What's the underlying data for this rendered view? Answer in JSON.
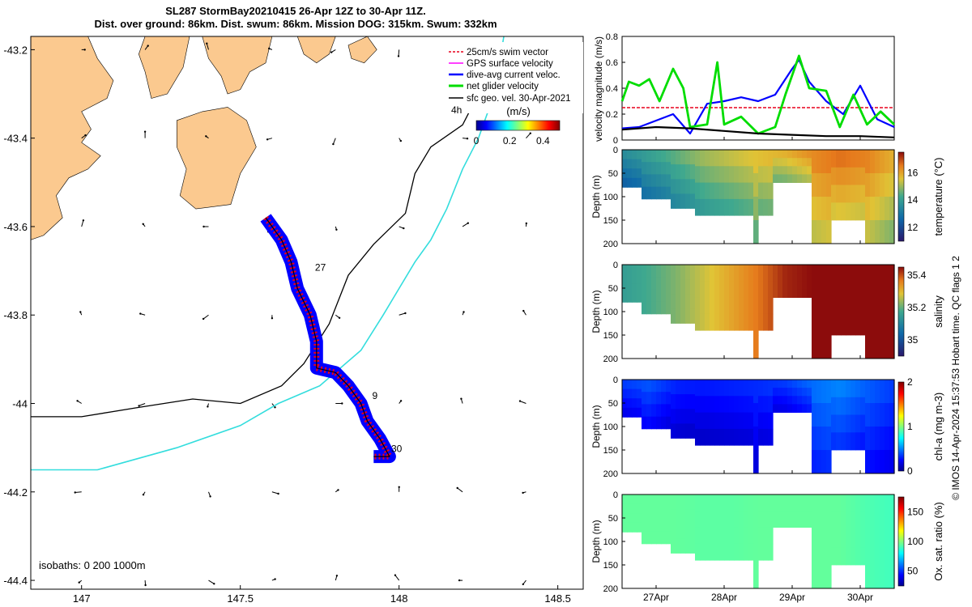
{
  "header": {
    "title_line1": "SL287 StormBay20210415 26-Apr 12Z to 30-Apr 11Z.",
    "title_line2": "Dist. over ground: 86km. Dist. swum: 86km. Mission DOG: 315km. Swum: 332km"
  },
  "colors": {
    "land": "#fbc98f",
    "swim_vector": "#e8001c",
    "gps_surface": "#ff00ff",
    "dive_avg": "#0000ff",
    "net_glider": "#00dd00",
    "sfc_geo": "#000000",
    "isobath_200": "#000000",
    "isobath_1000": "#33dddd"
  },
  "chart_data": [
    {
      "id": "track_map",
      "type": "scatter",
      "xlabel": "",
      "ylabel": "",
      "xlim": [
        146.84,
        148.58
      ],
      "ylim": [
        -44.42,
        -43.17
      ],
      "xticks": [
        147,
        147.5,
        148,
        148.5
      ],
      "xtick_labels": [
        "147",
        "147.5",
        "148",
        "148.5"
      ],
      "yticks": [
        -43.2,
        -43.4,
        -43.6,
        -43.8,
        -44,
        -44.2,
        -44.4
      ],
      "ytick_labels": [
        "-43.2",
        "-43.4",
        "-43.6",
        "-43.8",
        "-44",
        "-44.2",
        "-44.4"
      ],
      "legend": {
        "placement": "top-right",
        "entries": [
          "25cm/s swim vector",
          "GPS surface velocity",
          "dive-avg current veloc.",
          "net glider velocity",
          "sfc geo. vel. 30-Apr-2021"
        ]
      },
      "legend_extra": "4h",
      "colorbar": {
        "label": "(m/s)",
        "ticks": [
          "0",
          "0.2",
          "0.4"
        ],
        "range": [
          0,
          0.5
        ]
      },
      "isobaths_label": "isobaths: 0   200  1000m",
      "day_labels": [
        {
          "text": "27",
          "lon": 147.72,
          "lat": -43.7
        },
        {
          "text": "9",
          "lon": 147.9,
          "lat": -43.99
        },
        {
          "text": "30",
          "lon": 147.96,
          "lat": -44.11
        }
      ],
      "glider_track": [
        [
          147.58,
          -43.58
        ],
        [
          147.63,
          -43.63
        ],
        [
          147.66,
          -43.68
        ],
        [
          147.68,
          -43.74
        ],
        [
          147.72,
          -43.8
        ],
        [
          147.74,
          -43.86
        ],
        [
          147.74,
          -43.92
        ],
        [
          147.8,
          -43.93
        ],
        [
          147.84,
          -43.96
        ],
        [
          147.88,
          -44.0
        ],
        [
          147.9,
          -44.04
        ],
        [
          147.94,
          -44.08
        ],
        [
          147.97,
          -44.12
        ],
        [
          147.92,
          -44.12
        ]
      ],
      "isobath_200": [
        [
          146.84,
          -44.03
        ],
        [
          147.0,
          -44.03
        ],
        [
          147.17,
          -44.01
        ],
        [
          147.35,
          -43.99
        ],
        [
          147.5,
          -44.0
        ],
        [
          147.63,
          -43.96
        ],
        [
          147.7,
          -43.91
        ],
        [
          147.78,
          -43.82
        ],
        [
          147.84,
          -43.71
        ],
        [
          147.92,
          -43.64
        ],
        [
          148.02,
          -43.57
        ],
        [
          148.05,
          -43.48
        ],
        [
          148.1,
          -43.42
        ],
        [
          148.2,
          -43.37
        ],
        [
          148.25,
          -43.3
        ],
        [
          148.3,
          -43.2
        ]
      ],
      "isobath_1000": [
        [
          146.84,
          -44.15
        ],
        [
          147.05,
          -44.15
        ],
        [
          147.3,
          -44.1
        ],
        [
          147.5,
          -44.05
        ],
        [
          147.62,
          -44.0
        ],
        [
          147.75,
          -43.96
        ],
        [
          147.88,
          -43.88
        ],
        [
          147.95,
          -43.8
        ],
        [
          148.0,
          -43.74
        ],
        [
          148.05,
          -43.68
        ],
        [
          148.1,
          -43.63
        ],
        [
          148.15,
          -43.56
        ],
        [
          148.2,
          -43.47
        ],
        [
          148.25,
          -43.4
        ],
        [
          148.3,
          -43.3
        ],
        [
          148.33,
          -43.17
        ]
      ],
      "land_polygons": [
        [
          [
            146.84,
            -43.17
          ],
          [
            147.02,
            -43.17
          ],
          [
            147.05,
            -43.22
          ],
          [
            147.1,
            -43.27
          ],
          [
            147.08,
            -43.31
          ],
          [
            147.0,
            -43.34
          ],
          [
            147.03,
            -43.38
          ],
          [
            147.0,
            -43.41
          ],
          [
            147.06,
            -43.44
          ],
          [
            147.02,
            -43.47
          ],
          [
            146.96,
            -43.49
          ],
          [
            146.92,
            -43.53
          ],
          [
            146.94,
            -43.58
          ],
          [
            146.88,
            -43.62
          ],
          [
            146.84,
            -43.63
          ]
        ],
        [
          [
            147.2,
            -43.17
          ],
          [
            147.34,
            -43.17
          ],
          [
            147.32,
            -43.24
          ],
          [
            147.27,
            -43.3
          ],
          [
            147.22,
            -43.31
          ],
          [
            147.2,
            -43.25
          ],
          [
            147.18,
            -43.21
          ]
        ],
        [
          [
            147.3,
            -43.36
          ],
          [
            147.38,
            -43.34
          ],
          [
            147.46,
            -43.33
          ],
          [
            147.52,
            -43.36
          ],
          [
            147.55,
            -43.42
          ],
          [
            147.5,
            -43.48
          ],
          [
            147.47,
            -43.55
          ],
          [
            147.36,
            -43.56
          ],
          [
            147.31,
            -43.53
          ],
          [
            147.33,
            -43.47
          ],
          [
            147.3,
            -43.42
          ]
        ],
        [
          [
            147.38,
            -43.17
          ],
          [
            147.6,
            -43.17
          ],
          [
            147.58,
            -43.23
          ],
          [
            147.53,
            -43.25
          ],
          [
            147.5,
            -43.29
          ],
          [
            147.46,
            -43.3
          ],
          [
            147.44,
            -43.26
          ],
          [
            147.4,
            -43.22
          ]
        ],
        [
          [
            147.68,
            -43.17
          ],
          [
            147.8,
            -43.17
          ],
          [
            147.78,
            -43.21
          ],
          [
            147.74,
            -43.23
          ],
          [
            147.7,
            -43.21
          ]
        ],
        [
          [
            147.84,
            -43.19
          ],
          [
            147.9,
            -43.17
          ],
          [
            147.93,
            -43.2
          ],
          [
            147.89,
            -43.23
          ],
          [
            147.85,
            -43.22
          ]
        ]
      ]
    },
    {
      "id": "velocity_timeseries",
      "type": "line",
      "xlabel": "",
      "ylabel": "velocity magnitude (m/s)",
      "xlim": [
        0,
        4.0
      ],
      "ylim": [
        0,
        0.8
      ],
      "yticks": [
        0,
        0.2,
        0.4,
        0.6,
        0.8
      ],
      "xtick_labels": [
        "27Apr",
        "28Apr",
        "29Apr",
        "30Apr"
      ],
      "x_days": [
        0.5,
        1.5,
        2.5,
        3.5
      ],
      "series": [
        {
          "name": "25cm/s swim vector",
          "x": [
            0,
            4.0
          ],
          "values": [
            0.25,
            0.25
          ]
        },
        {
          "name": "dive-avg current veloc.",
          "x": [
            0,
            0.25,
            0.5,
            0.75,
            1.0,
            1.25,
            1.5,
            1.75,
            2.0,
            2.25,
            2.5,
            2.6,
            2.75,
            3.0,
            3.25,
            3.5,
            3.75,
            4.0
          ],
          "values": [
            0.09,
            0.1,
            0.15,
            0.2,
            0.05,
            0.28,
            0.3,
            0.33,
            0.3,
            0.35,
            0.55,
            0.62,
            0.45,
            0.3,
            0.2,
            0.42,
            0.16,
            0.1
          ]
        },
        {
          "name": "net glider velocity",
          "x": [
            0,
            0.1,
            0.25,
            0.4,
            0.55,
            0.75,
            0.9,
            1.0,
            1.25,
            1.4,
            1.5,
            1.75,
            2.0,
            2.25,
            2.4,
            2.6,
            2.75,
            3.0,
            3.2,
            3.4,
            3.6,
            3.8,
            4.0
          ],
          "values": [
            0.3,
            0.45,
            0.42,
            0.47,
            0.3,
            0.55,
            0.4,
            0.1,
            0.12,
            0.6,
            0.12,
            0.18,
            0.05,
            0.1,
            0.35,
            0.65,
            0.4,
            0.38,
            0.1,
            0.35,
            0.12,
            0.22,
            0.12
          ]
        },
        {
          "name": "sfc geo. vel. 30-Apr-2021",
          "x": [
            0,
            0.5,
            1.0,
            1.5,
            2.0,
            2.5,
            3.0,
            3.5,
            4.0
          ],
          "values": [
            0.08,
            0.1,
            0.09,
            0.07,
            0.05,
            0.04,
            0.03,
            0.03,
            0.02
          ]
        }
      ]
    },
    {
      "id": "temperature_section",
      "type": "heatmap",
      "ylabel": "Depth (m)",
      "colorbar_label": "temperature (°C)",
      "colorbar_ticks": [
        "12",
        "14",
        "16"
      ],
      "colorbar_range": [
        11,
        17.5
      ],
      "ylim": [
        200,
        0
      ],
      "yticks": [
        "0",
        "50",
        "100",
        "150",
        "200"
      ],
      "days": [
        0,
        0.4,
        0.8,
        1.2,
        1.6,
        2.0,
        2.4,
        2.8,
        3.2,
        3.6,
        4.0
      ],
      "values": [
        13.5,
        14.0,
        14.5,
        15.0,
        15.3,
        15.6,
        15.8,
        16.3,
        16.6,
        16.4,
        15.8
      ]
    },
    {
      "id": "salinity_section",
      "type": "heatmap",
      "ylabel": "Depth (m)",
      "colorbar_label": "salinity",
      "colorbar_ticks": [
        "35",
        "35.2",
        "35.4"
      ],
      "colorbar_range": [
        34.9,
        35.45
      ],
      "ylim": [
        200,
        0
      ],
      "yticks": [
        "0",
        "50",
        "100",
        "150",
        "200"
      ],
      "days": [
        0,
        0.4,
        0.8,
        1.2,
        1.6,
        2.0,
        2.4,
        2.8,
        3.2,
        3.6,
        4.0
      ],
      "values": [
        35.15,
        35.18,
        35.22,
        35.27,
        35.32,
        35.37,
        35.43,
        35.45,
        35.45,
        35.45,
        35.45
      ]
    },
    {
      "id": "chla_section",
      "type": "heatmap",
      "ylabel": "Depth (m)",
      "colorbar_label": "chl-a (mg m-3)",
      "colorbar_ticks": [
        "0",
        "1",
        "2"
      ],
      "colorbar_range": [
        0,
        2
      ],
      "ylim": [
        200,
        0
      ],
      "yticks": [
        "0",
        "50",
        "100",
        "150",
        "200"
      ],
      "days": [
        0,
        0.4,
        0.8,
        1.2,
        1.6,
        2.0,
        2.4,
        2.8,
        3.2,
        3.6,
        4.0
      ],
      "values": [
        0.35,
        0.4,
        0.3,
        0.28,
        0.3,
        0.32,
        0.35,
        0.45,
        0.5,
        0.42,
        0.35
      ]
    },
    {
      "id": "oxygen_section",
      "type": "heatmap",
      "ylabel": "Depth (m)",
      "colorbar_label": "Ox. sat. ratio (%)",
      "colorbar_ticks": [
        "50",
        "100",
        "150"
      ],
      "colorbar_range": [
        25,
        175
      ],
      "ylim": [
        200,
        0
      ],
      "yticks": [
        "0",
        "50",
        "100",
        "150",
        "200"
      ],
      "days": [
        0,
        0.4,
        0.8,
        1.2,
        1.6,
        2.0,
        2.4,
        2.8,
        3.2,
        3.6,
        4.0
      ],
      "values": [
        95,
        95,
        95,
        94,
        94,
        95,
        95,
        95,
        95,
        92,
        90
      ]
    }
  ],
  "footer": {
    "credit": "© IMOS 14-Apr-2024 15:37:53 Hobart time. QC flags 1  2"
  }
}
